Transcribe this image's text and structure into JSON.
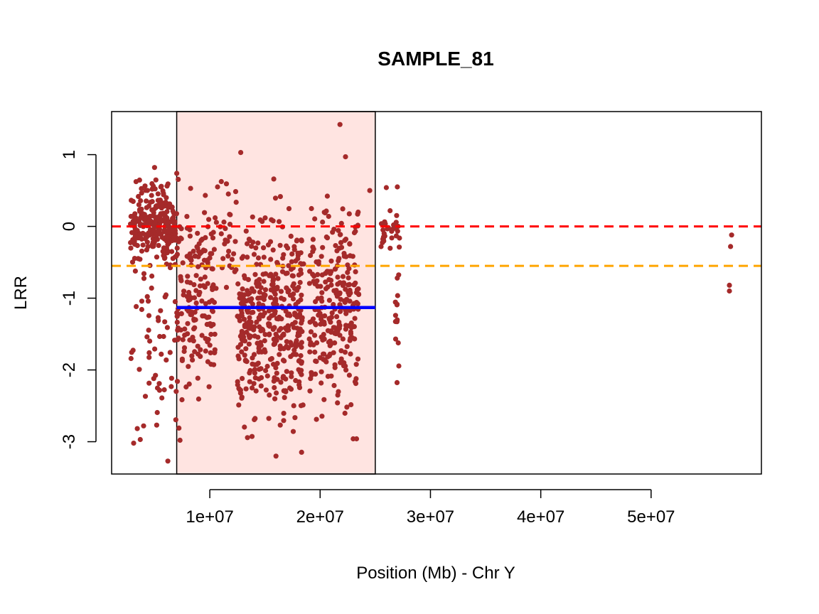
{
  "chart_data": {
    "type": "scatter",
    "title": "SAMPLE_81",
    "xlabel": "Position (Mb) - Chr Y",
    "ylabel": "LRR",
    "xlim": [
      1100000,
      60000000
    ],
    "ylim": [
      -3.45,
      1.6
    ],
    "x_ticks": [
      {
        "value": 10000000,
        "label": "1e+07"
      },
      {
        "value": 20000000,
        "label": "2e+07"
      },
      {
        "value": 30000000,
        "label": "3e+07"
      },
      {
        "value": 40000000,
        "label": "4e+07"
      },
      {
        "value": 50000000,
        "label": "5e+07"
      }
    ],
    "y_ticks": [
      {
        "value": 1,
        "label": "1"
      },
      {
        "value": 0,
        "label": "0"
      },
      {
        "value": -1,
        "label": "-1"
      },
      {
        "value": -2,
        "label": "-2"
      },
      {
        "value": -3,
        "label": "-3"
      }
    ],
    "grid": false,
    "point_color": "#A52A2A",
    "highlight_region": {
      "x_start": 7000000,
      "x_end": 25000000,
      "fill": "#FFE4E1",
      "border": "#000000"
    },
    "reference_lines": [
      {
        "y": 0,
        "color": "#FF0000",
        "style": "dashed"
      },
      {
        "y": -0.55,
        "color": "#FFA500",
        "style": "dashed"
      }
    ],
    "segment": {
      "x_start": 7000000,
      "x_end": 25000000,
      "y": -1.13,
      "color": "#0000FF"
    },
    "point_clusters": [
      {
        "x_range": [
          2800000,
          7000000
        ],
        "y_center": 0.05,
        "y_spread": 0.35,
        "n": 260
      },
      {
        "x_range": [
          2800000,
          7000000
        ],
        "y_center": -1.4,
        "y_spread": 0.9,
        "n": 60
      },
      {
        "x_range": [
          7000000,
          10500000
        ],
        "y_center": -1.0,
        "y_spread": 0.8,
        "n": 170
      },
      {
        "x_range": [
          10500000,
          12500000
        ],
        "y_center": -0.2,
        "y_spread": 0.4,
        "n": 30
      },
      {
        "x_range": [
          12500000,
          18500000
        ],
        "y_center": -1.3,
        "y_spread": 0.8,
        "n": 420
      },
      {
        "x_range": [
          19000000,
          23500000
        ],
        "y_center": -1.1,
        "y_spread": 0.8,
        "n": 260
      },
      {
        "x_range": [
          25500000,
          27200000
        ],
        "y_center": -0.1,
        "y_spread": 0.15,
        "n": 30
      },
      {
        "x_range": [
          26800000,
          27200000
        ],
        "y_center": -1.2,
        "y_spread": 0.6,
        "n": 14
      }
    ],
    "points": [
      {
        "x": 21800000,
        "y": 1.42
      },
      {
        "x": 22300000,
        "y": 0.97
      },
      {
        "x": 12800000,
        "y": 1.03
      },
      {
        "x": 7000000,
        "y": 0.74
      },
      {
        "x": 26000000,
        "y": 0.54
      },
      {
        "x": 27000000,
        "y": 0.55
      },
      {
        "x": 24500000,
        "y": 0.5
      },
      {
        "x": 15800000,
        "y": 0.66
      },
      {
        "x": 10700000,
        "y": 0.55
      },
      {
        "x": 6200000,
        "y": -3.27
      },
      {
        "x": 16000000,
        "y": -3.2
      },
      {
        "x": 3100000,
        "y": -3.02
      },
      {
        "x": 3700000,
        "y": -2.97
      },
      {
        "x": 23000000,
        "y": -2.96
      },
      {
        "x": 23300000,
        "y": -2.96
      },
      {
        "x": 7300000,
        "y": -2.98
      },
      {
        "x": 4000000,
        "y": -2.78
      },
      {
        "x": 7200000,
        "y": -2.81
      },
      {
        "x": 57300000,
        "y": -0.12
      },
      {
        "x": 57200000,
        "y": -0.28
      },
      {
        "x": 57100000,
        "y": -0.82
      },
      {
        "x": 57100000,
        "y": -0.9
      }
    ]
  }
}
